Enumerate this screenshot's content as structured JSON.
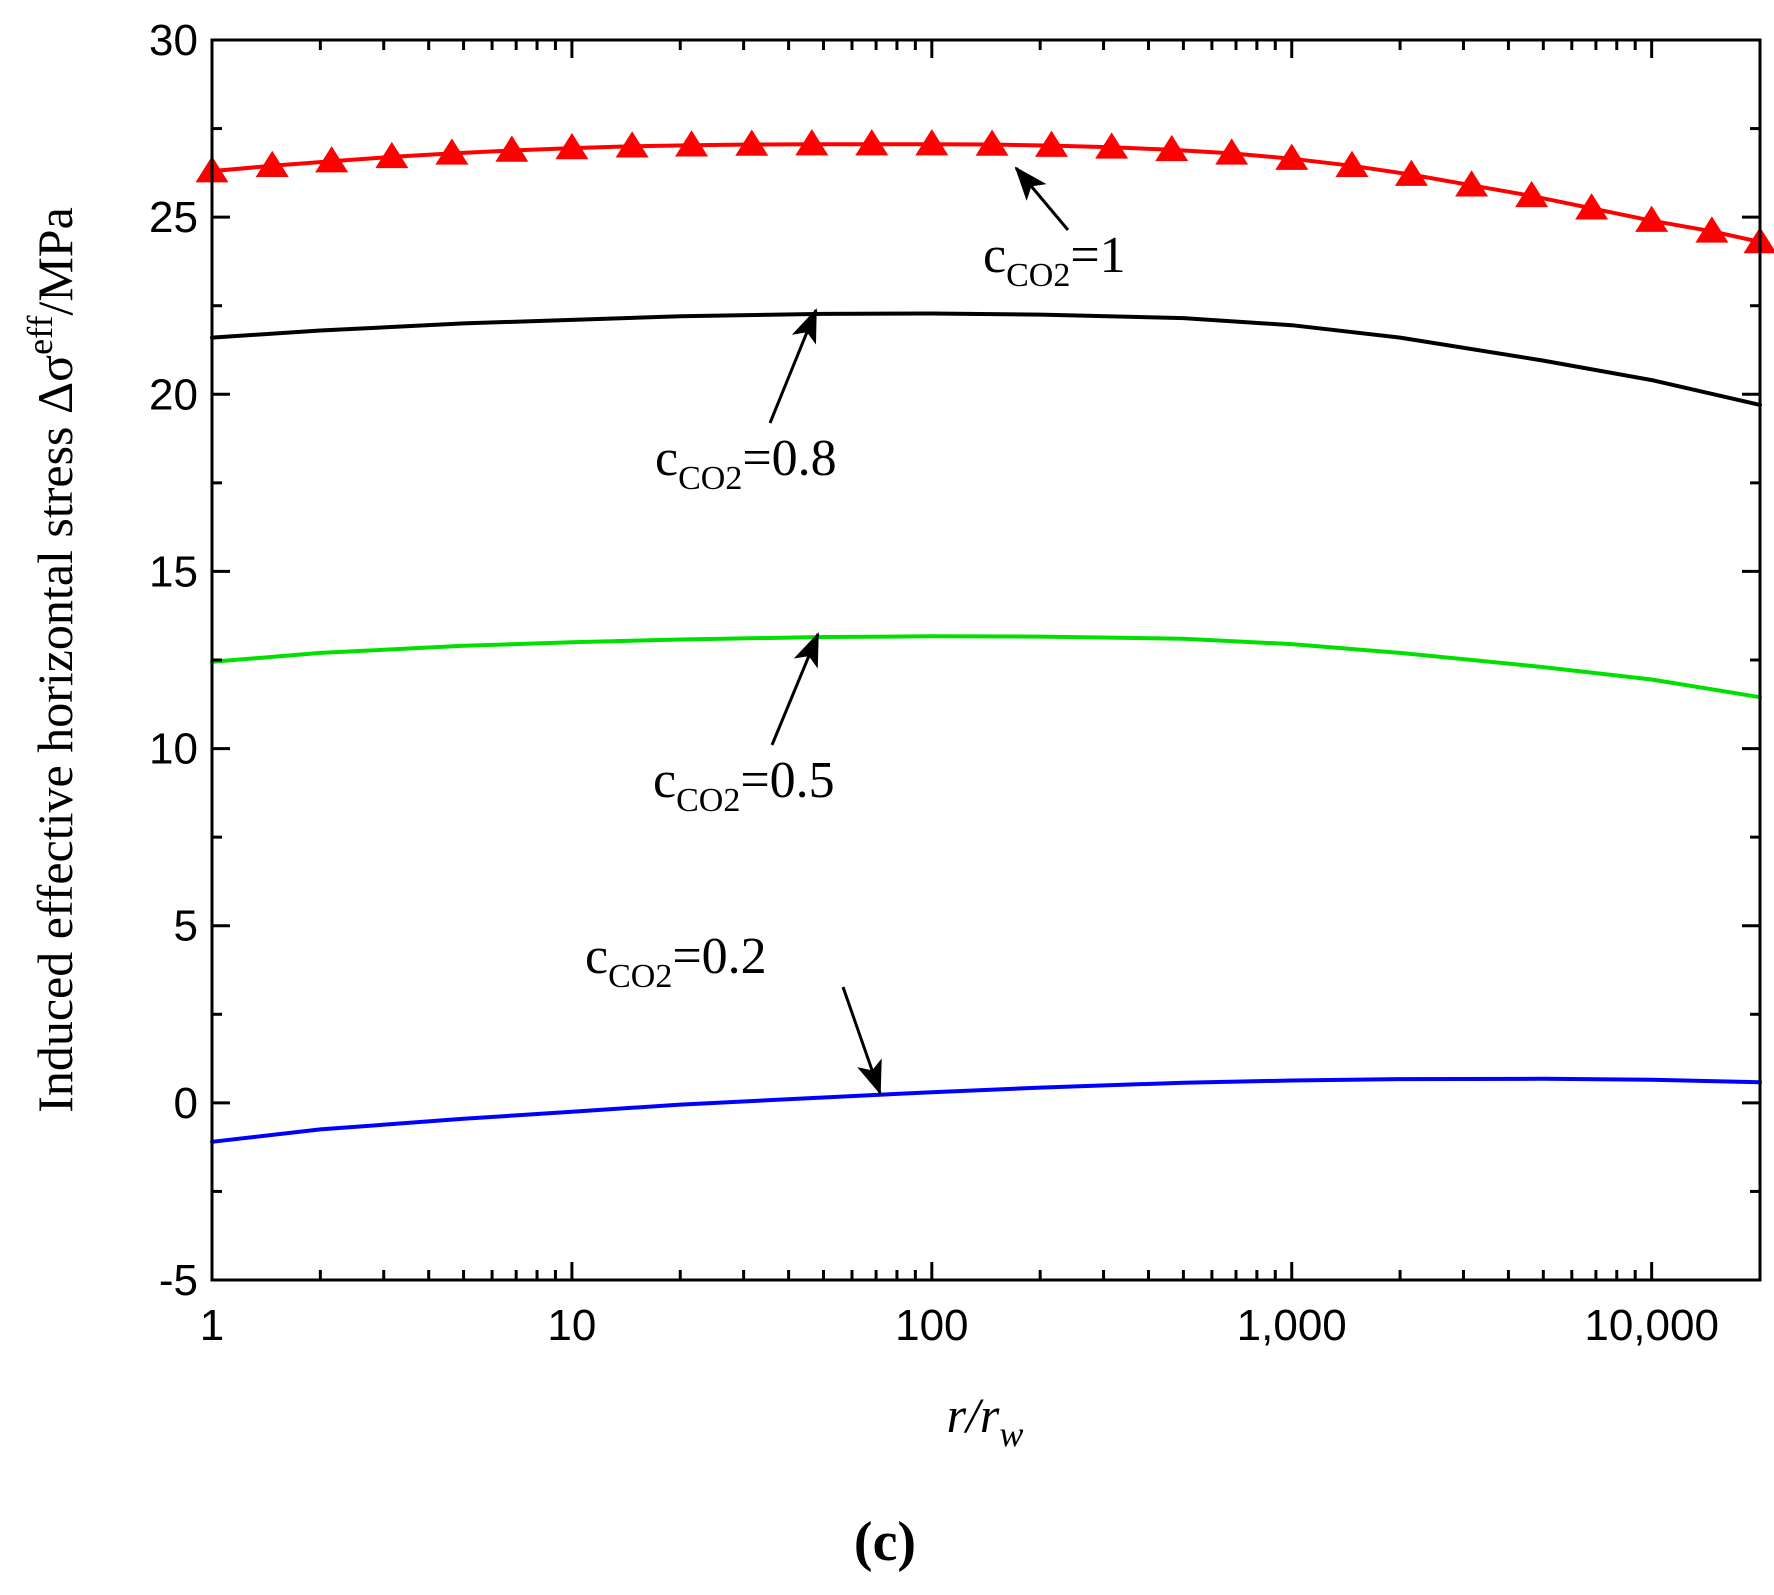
{
  "chart_data": {
    "type": "line",
    "panel_label": "(c)",
    "xlabel": {
      "main": "r/r",
      "sub": "w"
    },
    "ylabel": {
      "main": "Induced effective horizontal stress Δσ",
      "sup": "eff",
      "unit": "/MPa"
    },
    "xscale": "log",
    "xlim": [
      1,
      20000
    ],
    "ylim": [
      -5,
      30
    ],
    "xticks": [
      {
        "value": 1,
        "label": "1"
      },
      {
        "value": 10,
        "label": "10"
      },
      {
        "value": 100,
        "label": "100"
      },
      {
        "value": 1000,
        "label": "1,000"
      },
      {
        "value": 10000,
        "label": "10,000"
      }
    ],
    "yticks": [
      {
        "value": -5,
        "label": "-5"
      },
      {
        "value": 0,
        "label": "0"
      },
      {
        "value": 5,
        "label": "5"
      },
      {
        "value": 10,
        "label": "10"
      },
      {
        "value": 15,
        "label": "15"
      },
      {
        "value": 20,
        "label": "20"
      },
      {
        "value": 25,
        "label": "25"
      },
      {
        "value": 30,
        "label": "30"
      }
    ],
    "series": [
      {
        "name": "c_CO2=1",
        "color": "#ff0000",
        "marker": "triangle",
        "x": [
          1,
          1.47,
          2.15,
          3.16,
          4.64,
          6.81,
          10,
          14.7,
          21.5,
          31.6,
          46.4,
          68.1,
          100,
          147,
          215,
          316,
          464,
          681,
          1000,
          1470,
          2150,
          3160,
          4640,
          6810,
          10000,
          14700,
          20000
        ],
        "y": [
          26.3,
          26.45,
          26.58,
          26.7,
          26.8,
          26.88,
          26.95,
          27.0,
          27.03,
          27.05,
          27.06,
          27.06,
          27.06,
          27.05,
          27.02,
          26.97,
          26.9,
          26.8,
          26.65,
          26.45,
          26.2,
          25.9,
          25.6,
          25.25,
          24.9,
          24.6,
          24.3
        ]
      },
      {
        "name": "c_CO2=0.8",
        "color": "#000000",
        "marker": "none",
        "x": [
          1,
          2,
          5,
          10,
          20,
          50,
          100,
          200,
          500,
          1000,
          2000,
          5000,
          10000,
          20000
        ],
        "y": [
          21.6,
          21.8,
          22.0,
          22.1,
          22.2,
          22.27,
          22.28,
          22.25,
          22.15,
          21.95,
          21.6,
          20.95,
          20.4,
          19.7
        ]
      },
      {
        "name": "c_CO2=0.5",
        "color": "#00e000",
        "marker": "none",
        "x": [
          1,
          2,
          5,
          10,
          20,
          50,
          100,
          200,
          500,
          1000,
          2000,
          5000,
          10000,
          20000
        ],
        "y": [
          12.45,
          12.7,
          12.9,
          13.0,
          13.08,
          13.15,
          13.17,
          13.16,
          13.1,
          12.95,
          12.7,
          12.3,
          11.95,
          11.45
        ]
      },
      {
        "name": "c_CO2=0.2",
        "color": "#0000ff",
        "marker": "none",
        "x": [
          1,
          2,
          5,
          10,
          20,
          50,
          100,
          200,
          500,
          1000,
          2000,
          5000,
          10000,
          20000
        ],
        "y": [
          -1.1,
          -0.75,
          -0.45,
          -0.25,
          -0.05,
          0.15,
          0.3,
          0.43,
          0.57,
          0.63,
          0.67,
          0.68,
          0.65,
          0.58
        ]
      }
    ],
    "annotations": [
      {
        "label_main": "c",
        "label_sub": "CO2",
        "label_value": "=1",
        "series": "c_CO2=1"
      },
      {
        "label_main": "c",
        "label_sub": "CO2",
        "label_value": "=0.8",
        "series": "c_CO2=0.8"
      },
      {
        "label_main": "c",
        "label_sub": "CO2",
        "label_value": "=0.5",
        "series": "c_CO2=0.5"
      },
      {
        "label_main": "c",
        "label_sub": "CO2",
        "label_value": "=0.2",
        "series": "c_CO2=0.2"
      }
    ]
  }
}
